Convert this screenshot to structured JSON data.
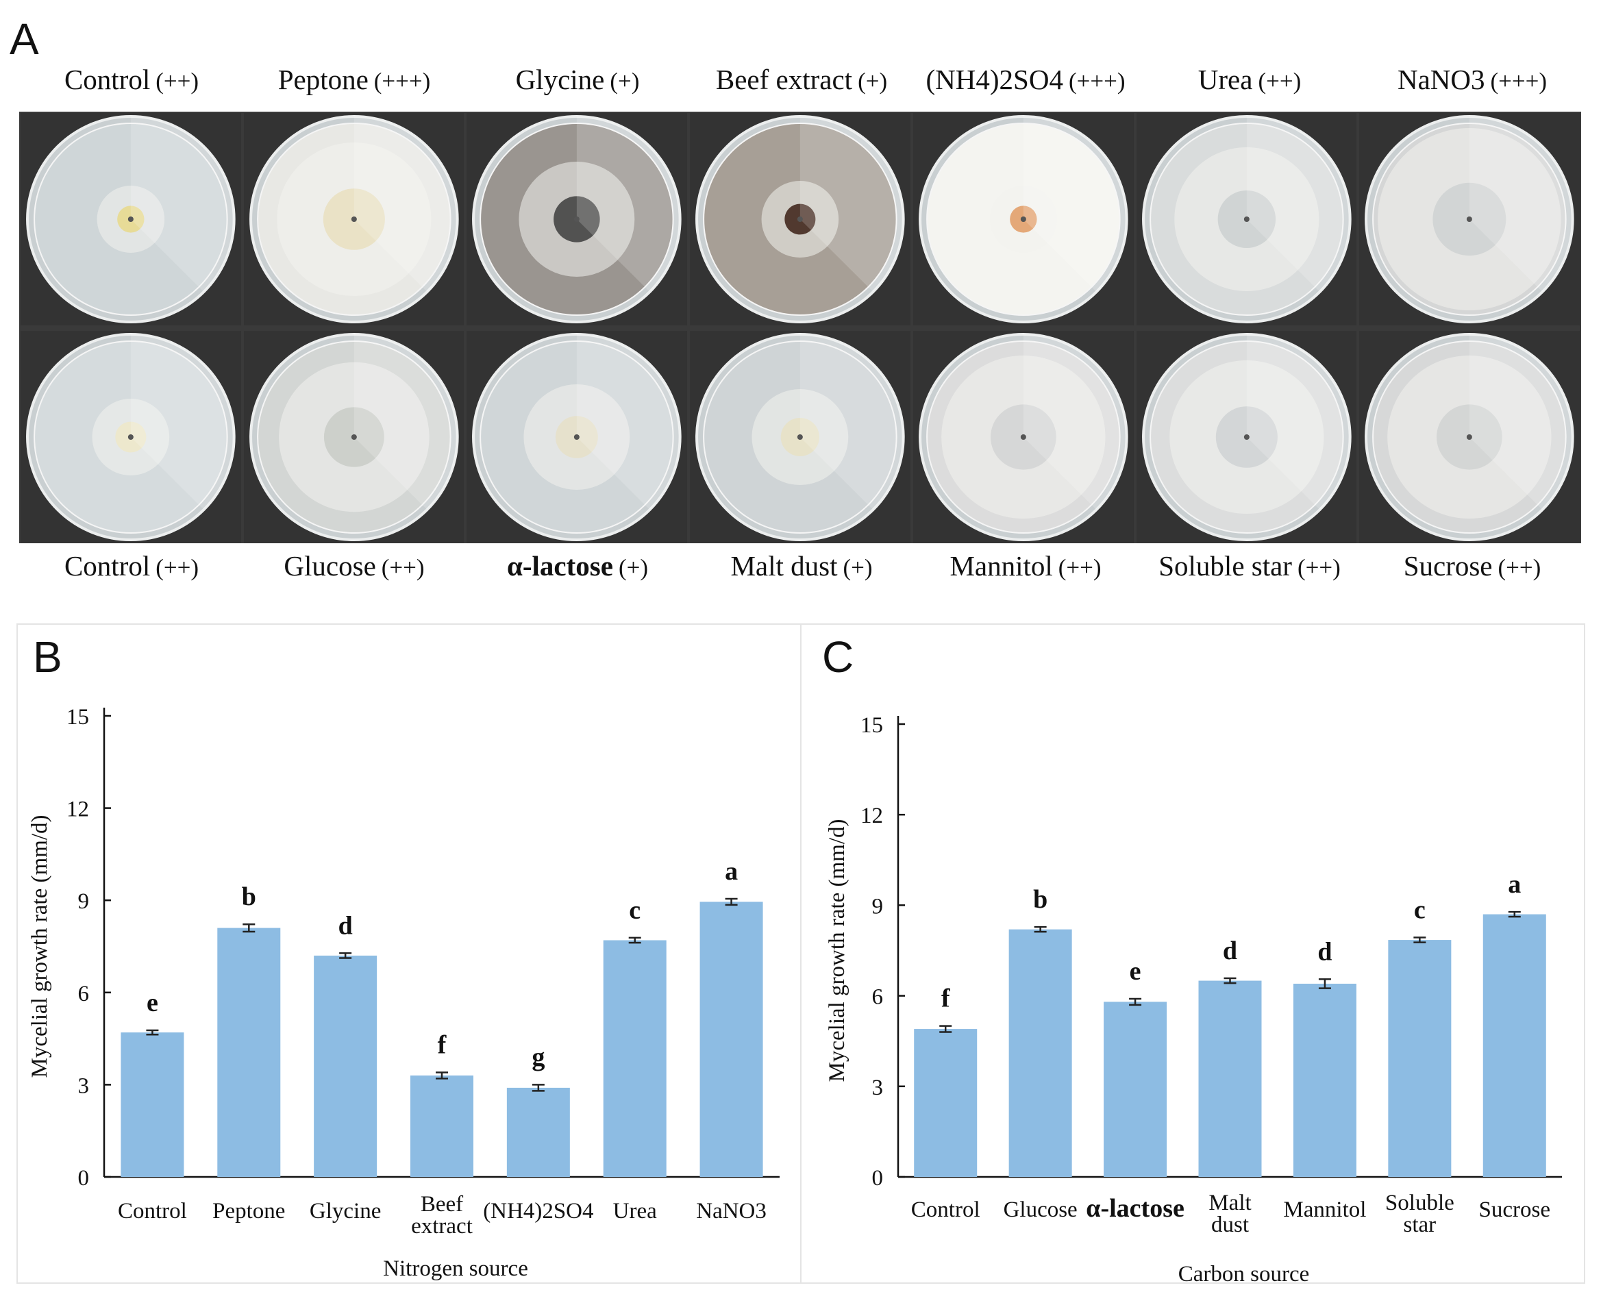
{
  "panel_a": {
    "label": "A",
    "top_row": [
      {
        "name": "Control",
        "suffix": "(++)",
        "bold": false,
        "color": "#cfd6d8",
        "mycelium": 0.35,
        "pigment": "#e8d98a"
      },
      {
        "name": "Peptone",
        "suffix": "(+++)",
        "bold": false,
        "color": "#e8e8e4",
        "mycelium": 0.8,
        "pigment": "#e9dfc0"
      },
      {
        "name": "Glycine",
        "suffix": "(+)",
        "bold": false,
        "color": "#9a9590",
        "mycelium": 0.6,
        "pigment": "#3d3d3d"
      },
      {
        "name": "Beef extract",
        "suffix": "(+)",
        "bold": false,
        "color": "#a79f96",
        "mycelium": 0.4,
        "pigment": "#3b1e14"
      },
      {
        "name": "(NH4)2SO4",
        "suffix": "(+++)",
        "bold": false,
        "color": "#f4f4f0",
        "mycelium": 0.35,
        "pigment": "#e19a63"
      },
      {
        "name": "Urea",
        "suffix": "(++)",
        "bold": false,
        "color": "#d9dcdc",
        "mycelium": 0.75,
        "pigment": "#cbd0d0"
      },
      {
        "name": "NaNO3",
        "suffix": "(+++)",
        "bold": false,
        "color": "#d5d6d6",
        "mycelium": 0.95,
        "pigment": "#cfd2d2"
      }
    ],
    "bottom_row": [
      {
        "name": "Control",
        "suffix": "(++)",
        "bold": false,
        "color": "#d5dbdd",
        "mycelium": 0.4,
        "pigment": "#efe7c8"
      },
      {
        "name": "Glucose",
        "suffix": "(++)",
        "bold": false,
        "color": "#d3d6d4",
        "mycelium": 0.78,
        "pigment": "#c9cdc7"
      },
      {
        "name": "α-lactose",
        "suffix": "(+)",
        "bold": true,
        "color": "#d0d6d8",
        "mycelium": 0.55,
        "pigment": "#e6e0c8"
      },
      {
        "name": "Malt dust",
        "suffix": "(+)",
        "bold": false,
        "color": "#cfd4d6",
        "mycelium": 0.5,
        "pigment": "#e8e2c4"
      },
      {
        "name": "Mannitol",
        "suffix": "(++)",
        "bold": false,
        "color": "#dcdcdc",
        "mycelium": 0.85,
        "pigment": "#d2d4d4"
      },
      {
        "name": "Soluble star",
        "suffix": "(++)",
        "bold": false,
        "color": "#dcdddd",
        "mycelium": 0.8,
        "pigment": "#cfd2d3"
      },
      {
        "name": "Sucrose",
        "suffix": "(++)",
        "bold": false,
        "color": "#d7d8d8",
        "mycelium": 0.85,
        "pigment": "#d0d2d2"
      }
    ]
  },
  "chart_data": [
    {
      "panel": "B",
      "type": "bar",
      "ylabel": "Mycelial growth rate (mm/d)",
      "xlabel": "Nitrogen source",
      "ylim": [
        0,
        15
      ],
      "yticks": [
        "0",
        "3",
        "6",
        "9",
        "12",
        "15"
      ],
      "categories": [
        [
          "Control"
        ],
        [
          "Peptone"
        ],
        [
          "Glycine"
        ],
        [
          "Beef",
          "extract"
        ],
        [
          "(NH4)2SO4"
        ],
        [
          "Urea"
        ],
        [
          "NaNO3"
        ]
      ],
      "bold_categories": [],
      "values": [
        4.7,
        8.1,
        7.2,
        3.3,
        2.9,
        7.7,
        8.95
      ],
      "errors": [
        0.07,
        0.12,
        0.08,
        0.1,
        0.1,
        0.08,
        0.1
      ],
      "significance": [
        "e",
        "b",
        "d",
        "f",
        "g",
        "c",
        "a"
      ],
      "bar_color": "#8dbce3",
      "grid": false
    },
    {
      "panel": "C",
      "type": "bar",
      "ylabel": "Mycelial growth rate (mm/d)",
      "xlabel": "Carbon source",
      "ylim": [
        0,
        15
      ],
      "yticks": [
        "0",
        "3",
        "6",
        "9",
        "12",
        "15"
      ],
      "categories": [
        [
          "Control"
        ],
        [
          "Glucose"
        ],
        [
          "α-lactose"
        ],
        [
          "Malt",
          "dust"
        ],
        [
          "Mannitol"
        ],
        [
          "Soluble",
          "star"
        ],
        [
          "Sucrose"
        ]
      ],
      "bold_categories": [
        2
      ],
      "values": [
        4.9,
        8.2,
        5.8,
        6.5,
        6.4,
        7.85,
        8.7
      ],
      "errors": [
        0.1,
        0.08,
        0.1,
        0.08,
        0.15,
        0.08,
        0.08
      ],
      "significance": [
        "f",
        "b",
        "e",
        "d",
        "d",
        "c",
        "a"
      ],
      "bar_color": "#8dbce3",
      "grid": false
    }
  ]
}
